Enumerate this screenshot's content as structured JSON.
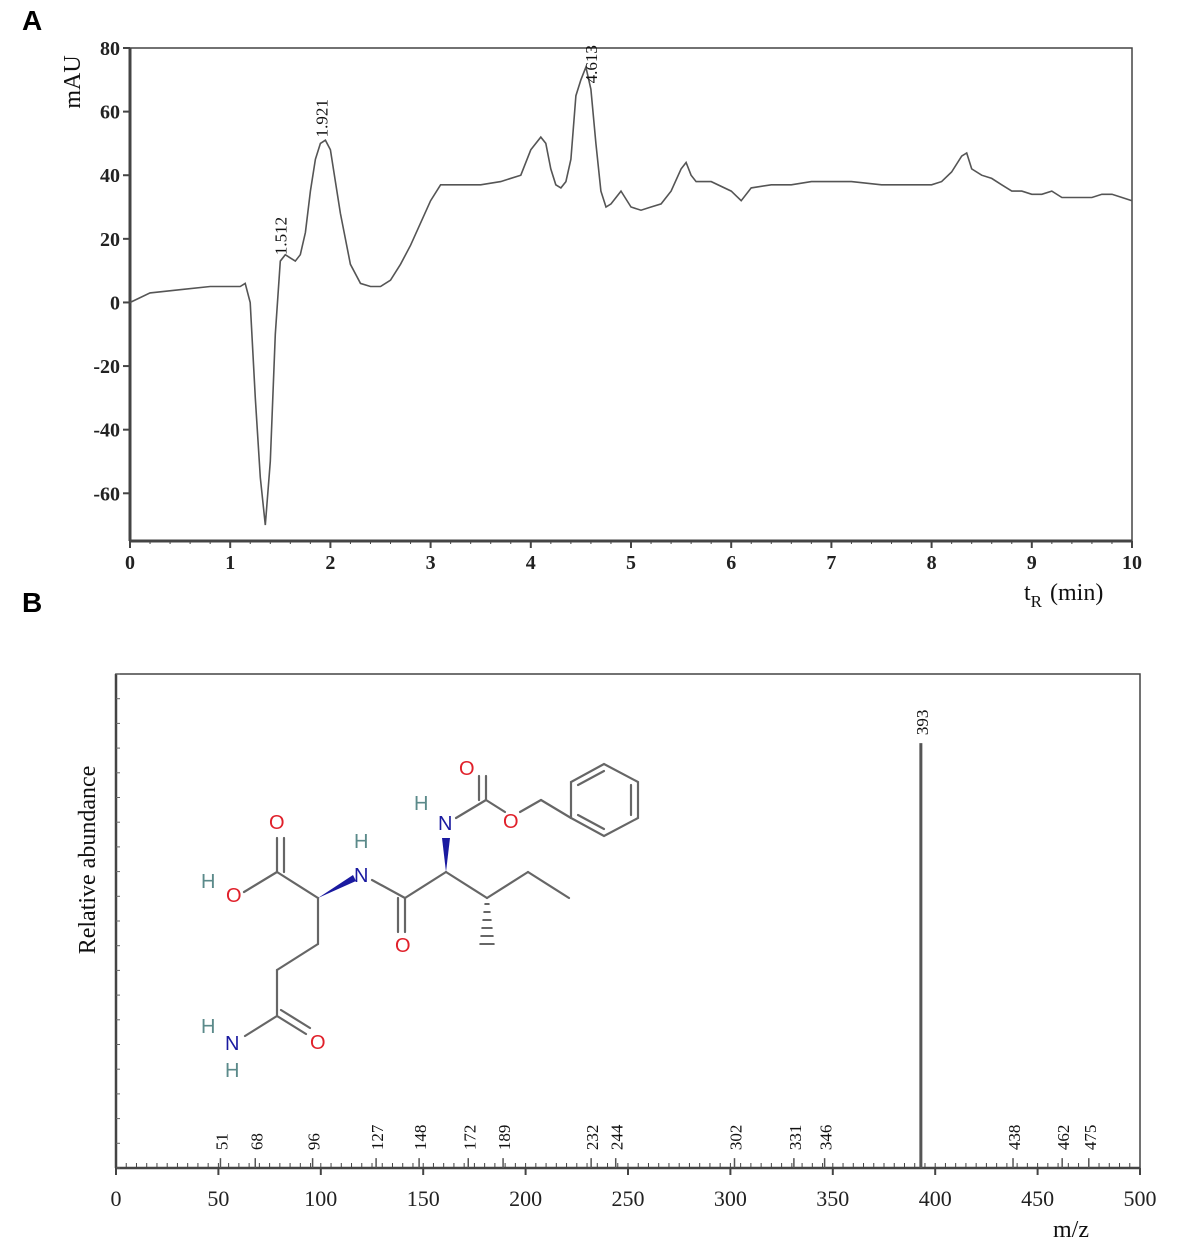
{
  "panels": {
    "a": "A",
    "b": "B"
  },
  "chart_data": [
    {
      "type": "line",
      "panel": "A",
      "ylabel": "mAU",
      "xlabel": "t",
      "xlabel_sub": "R",
      "xlabel_unit": "(min)",
      "xlim": [
        0,
        10
      ],
      "ylim": [
        -75,
        80
      ],
      "xticks": [
        0,
        1,
        2,
        3,
        4,
        5,
        6,
        7,
        8,
        9,
        10
      ],
      "yticks": [
        -60,
        -40,
        -20,
        0,
        20,
        40,
        60,
        80
      ],
      "grid": false,
      "series": [
        {
          "x": [
            0,
            0.2,
            0.5,
            0.8,
            1.0,
            1.1,
            1.15,
            1.2,
            1.25,
            1.3,
            1.35,
            1.4,
            1.45,
            1.5,
            1.55,
            1.6,
            1.65,
            1.7,
            1.75,
            1.8,
            1.85,
            1.9,
            1.95,
            2.0,
            2.05,
            2.1,
            2.2,
            2.3,
            2.4,
            2.5,
            2.6,
            2.7,
            2.8,
            2.9,
            3.0,
            3.1,
            3.2,
            3.3,
            3.5,
            3.7,
            3.9,
            4.0,
            4.1,
            4.15,
            4.2,
            4.25,
            4.3,
            4.35,
            4.4,
            4.45,
            4.5,
            4.55,
            4.6,
            4.65,
            4.7,
            4.75,
            4.8,
            4.85,
            4.9,
            5.0,
            5.1,
            5.2,
            5.3,
            5.4,
            5.5,
            5.55,
            5.6,
            5.65,
            5.7,
            5.8,
            6.0,
            6.1,
            6.2,
            6.4,
            6.6,
            6.8,
            7.0,
            7.2,
            7.5,
            7.8,
            8.0,
            8.1,
            8.2,
            8.3,
            8.35,
            8.4,
            8.5,
            8.6,
            8.7,
            8.8,
            8.9,
            9.0,
            9.1,
            9.2,
            9.3,
            9.4,
            9.5,
            9.6,
            9.7,
            9.8,
            9.9,
            10.0
          ],
          "y": [
            0,
            3,
            4,
            5,
            5,
            5,
            6,
            0,
            -30,
            -55,
            -70,
            -50,
            -10,
            13,
            15,
            14,
            13,
            15,
            22,
            35,
            45,
            50,
            51,
            48,
            38,
            28,
            12,
            6,
            5,
            5,
            7,
            12,
            18,
            25,
            32,
            37,
            37,
            37,
            37,
            38,
            40,
            48,
            52,
            50,
            42,
            37,
            36,
            38,
            45,
            65,
            70,
            74,
            67,
            50,
            35,
            30,
            31,
            33,
            35,
            30,
            29,
            30,
            31,
            35,
            42,
            44,
            40,
            38,
            38,
            38,
            35,
            32,
            36,
            37,
            37,
            38,
            38,
            38,
            37,
            37,
            37,
            38,
            41,
            46,
            47,
            42,
            40,
            39,
            37,
            35,
            35,
            34,
            34,
            35,
            33,
            33,
            33,
            33,
            34,
            34,
            33,
            32
          ]
        }
      ],
      "annotations": [
        "1.512",
        "1.921",
        "4.613"
      ]
    },
    {
      "type": "bar",
      "panel": "B",
      "ylabel": "Relative abundance",
      "xlabel": "m/z",
      "xlim": [
        0,
        500
      ],
      "xticks": [
        0,
        50,
        100,
        150,
        200,
        250,
        300,
        350,
        400,
        450,
        500
      ],
      "grid": false,
      "peaks": [
        {
          "mz": 51,
          "label": "51"
        },
        {
          "mz": 68,
          "label": "68"
        },
        {
          "mz": 96,
          "label": "96"
        },
        {
          "mz": 127,
          "label": "127"
        },
        {
          "mz": 148,
          "label": "148"
        },
        {
          "mz": 172,
          "label": "172"
        },
        {
          "mz": 189,
          "label": "189"
        },
        {
          "mz": 232,
          "label": "232"
        },
        {
          "mz": 244,
          "label": "244"
        },
        {
          "mz": 302,
          "label": "302"
        },
        {
          "mz": 331,
          "label": "331"
        },
        {
          "mz": 346,
          "label": "346"
        },
        {
          "mz": 393,
          "label": "393",
          "relative": 0.86
        },
        {
          "mz": 438,
          "label": "438"
        },
        {
          "mz": 462,
          "label": "462"
        },
        {
          "mz": 475,
          "label": "475"
        }
      ]
    }
  ],
  "structure": {
    "atoms": {
      "o": "O",
      "h": "H",
      "n": "N"
    }
  }
}
